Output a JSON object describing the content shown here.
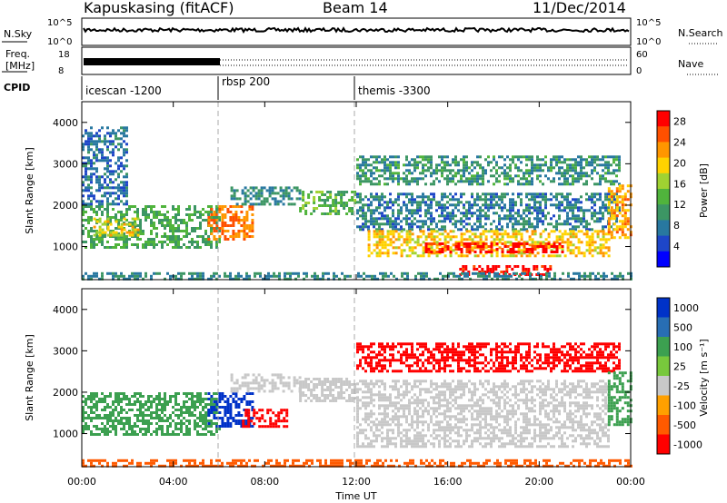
{
  "header": {
    "title": "Kapuskasing (fitACF)",
    "beam": "Beam 14",
    "date": "11/Dec/2014"
  },
  "panels": {
    "nsky": {
      "label": "N.Sky",
      "ticks": [
        "10^5",
        "10^0"
      ],
      "right_label": "N.Search",
      "right_ticks": [
        "10^5",
        "10^0"
      ]
    },
    "freq": {
      "label": "Freq.",
      "unit": "[MHz]",
      "ticks": [
        "18",
        "8"
      ],
      "right_label": "Nave",
      "right_ticks": [
        "60",
        "0"
      ]
    },
    "cpid": {
      "label": "CPID",
      "segments": [
        {
          "name": "icescan -1200",
          "start_ut": 0
        },
        {
          "name": "rbsp 200",
          "start_ut": 6
        },
        {
          "name": "themis -3300",
          "start_ut": 12
        }
      ]
    }
  },
  "chart_data": [
    {
      "type": "heatmap",
      "quantity": "Power",
      "ylabel": "Slant Range [km]",
      "xlabel": "Time UT",
      "xlim": [
        0,
        24
      ],
      "ylim": [
        200,
        4500
      ],
      "y_ticks": [
        1000,
        2000,
        3000,
        4000
      ],
      "colorbar": {
        "label": "Power [dB]",
        "ticks": [
          "4",
          "8",
          "12",
          "16",
          "20",
          "24",
          "28"
        ],
        "range": [
          0,
          30
        ]
      },
      "regions": [
        {
          "t0": 0.0,
          "t1": 6.0,
          "r0": 1000,
          "r1": 2000,
          "value": 12
        },
        {
          "t0": 0.5,
          "t1": 2.5,
          "r0": 1300,
          "r1": 1700,
          "value": 19
        },
        {
          "t0": 5.5,
          "t1": 7.5,
          "r0": 1200,
          "r1": 2000,
          "value": 24
        },
        {
          "t0": 6.5,
          "t1": 9.5,
          "r0": 2050,
          "r1": 2450,
          "value": 9
        },
        {
          "t0": 9.5,
          "t1": 12.0,
          "r0": 1800,
          "r1": 2350,
          "value": 13
        },
        {
          "t0": 12.0,
          "t1": 23.5,
          "r0": 1400,
          "r1": 2300,
          "value": 8
        },
        {
          "t0": 12.5,
          "t1": 23.0,
          "r0": 800,
          "r1": 1400,
          "value": 20
        },
        {
          "t0": 15.0,
          "t1": 21.0,
          "r0": 900,
          "r1": 1100,
          "value": 28
        },
        {
          "t0": 16.5,
          "t1": 20.5,
          "r0": 300,
          "r1": 550,
          "value": 29
        },
        {
          "t0": 12.0,
          "t1": 23.5,
          "r0": 2500,
          "r1": 3200,
          "value": 10
        },
        {
          "t0": 0.0,
          "t1": 24.0,
          "r0": 220,
          "r1": 380,
          "value": 9
        },
        {
          "t0": 0.0,
          "t1": 2.0,
          "r0": 2000,
          "r1": 3900,
          "value": 7
        },
        {
          "t0": 23.0,
          "t1": 24.0,
          "r0": 1200,
          "r1": 2500,
          "value": 22
        }
      ]
    },
    {
      "type": "heatmap",
      "quantity": "Velocity",
      "ylabel": "Slant Range [km]",
      "xlabel": "Time UT",
      "xlim": [
        0,
        24
      ],
      "ylim": [
        200,
        4500
      ],
      "y_ticks": [
        1000,
        2000,
        3000,
        4000
      ],
      "x_ticks": [
        "00:00",
        "04:00",
        "08:00",
        "12:00",
        "16:00",
        "20:00",
        "00:00"
      ],
      "colorbar": {
        "label": "Velocity [m s⁻¹]",
        "ticks": [
          "1000",
          "500",
          "100",
          "25",
          "-25",
          "-100",
          "-500",
          "-1000"
        ]
      },
      "regions": [
        {
          "t0": 0.0,
          "t1": 6.0,
          "r0": 1000,
          "r1": 2000,
          "value": 100
        },
        {
          "t0": 5.5,
          "t1": 7.5,
          "r0": 1200,
          "r1": 2000,
          "value": 500
        },
        {
          "t0": 6.5,
          "t1": 9.5,
          "r0": 2050,
          "r1": 2450,
          "value": 0
        },
        {
          "t0": 9.5,
          "t1": 12.0,
          "r0": 1800,
          "r1": 2350,
          "value": 0
        },
        {
          "t0": 12.0,
          "t1": 23.0,
          "r0": 700,
          "r1": 2300,
          "value": 0
        },
        {
          "t0": 12.0,
          "t1": 23.5,
          "r0": 2500,
          "r1": 3200,
          "value": -300
        },
        {
          "t0": 0.0,
          "t1": 24.0,
          "r0": 220,
          "r1": 380,
          "value": -60
        },
        {
          "t0": 7.0,
          "t1": 9.0,
          "r0": 1200,
          "r1": 1600,
          "value": -200
        },
        {
          "t0": 23.0,
          "t1": 24.0,
          "r0": 1200,
          "r1": 2500,
          "value": 60
        }
      ]
    }
  ],
  "colors": {
    "power": [
      "#0000ff",
      "#1e46c8",
      "#2878a0",
      "#3c9664",
      "#50b43c",
      "#a0d232",
      "#ffd200",
      "#ff9600",
      "#ff5000",
      "#ff0000"
    ],
    "velocity": [
      "#ff0000",
      "#ff5a00",
      "#ffa000",
      "#c8c8c8",
      "#78c83c",
      "#3ca050",
      "#286eb4",
      "#0032c8"
    ]
  }
}
